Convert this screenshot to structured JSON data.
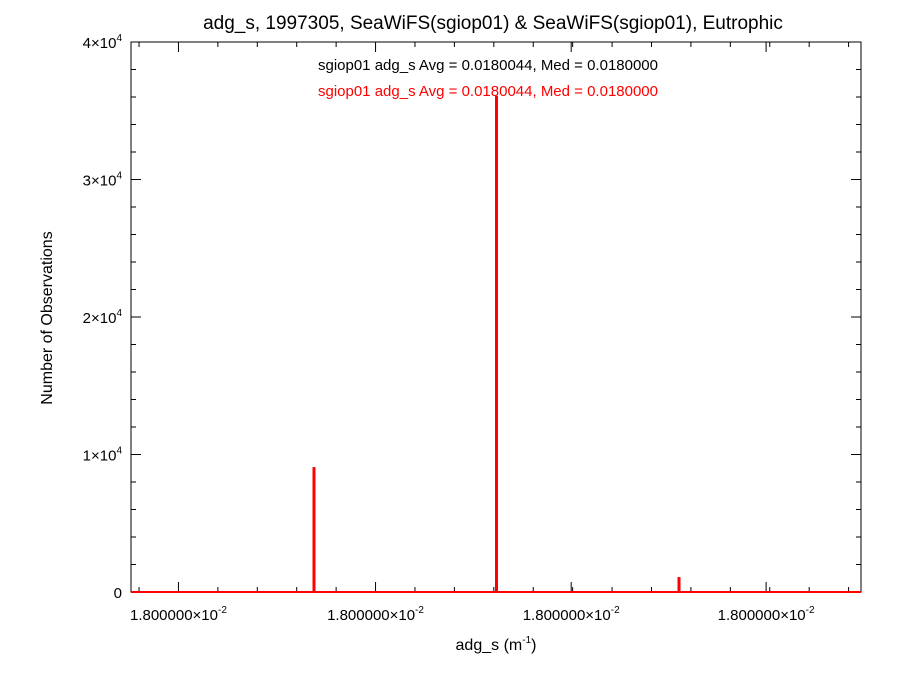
{
  "chart_data": {
    "type": "bar",
    "title": "adg_s, 1997305, SeaWiFS(sgiop01) & SeaWiFS(sgiop01), Eutrophic",
    "xlabel": {
      "base": "adg_s (m",
      "sup": "-1",
      "tail": ")"
    },
    "ylabel": "Number of Observations",
    "xlim": [
      0,
      100
    ],
    "ylim": [
      0,
      40000
    ],
    "x_ticks": [
      {
        "pos": 6.5,
        "mantissa": "1.800000×10",
        "exp": "-2"
      },
      {
        "pos": 33.5,
        "mantissa": "1.800000×10",
        "exp": "-2"
      },
      {
        "pos": 60.3,
        "mantissa": "1.800000×10",
        "exp": "-2"
      },
      {
        "pos": 87.0,
        "mantissa": "1.800000×10",
        "exp": "-2"
      }
    ],
    "y_ticks": [
      {
        "value": 0,
        "text": "0",
        "exp": ""
      },
      {
        "value": 10000,
        "text": "1×10",
        "exp": "4"
      },
      {
        "value": 20000,
        "text": "2×10",
        "exp": "4"
      },
      {
        "value": 30000,
        "text": "3×10",
        "exp": "4"
      },
      {
        "value": 40000,
        "text": "4×10",
        "exp": "4"
      }
    ],
    "series": [
      {
        "name": "sgiop01",
        "color": "#000000",
        "x": [
          25,
          50,
          75
        ],
        "values": [
          9000,
          36000,
          1000
        ]
      },
      {
        "name": "sgiop01",
        "color": "#ff0000",
        "x": [
          25,
          50,
          75
        ],
        "values": [
          9000,
          36000,
          1000
        ]
      }
    ],
    "legend": [
      {
        "text": "sgiop01 adg_s Avg = 0.0180044, Med = 0.0180000",
        "color": "#000000"
      },
      {
        "text": "sgiop01 adg_s Avg = 0.0180044, Med = 0.0180000",
        "color": "#ff0000"
      }
    ],
    "legend_position": "top-center",
    "grid": false
  }
}
